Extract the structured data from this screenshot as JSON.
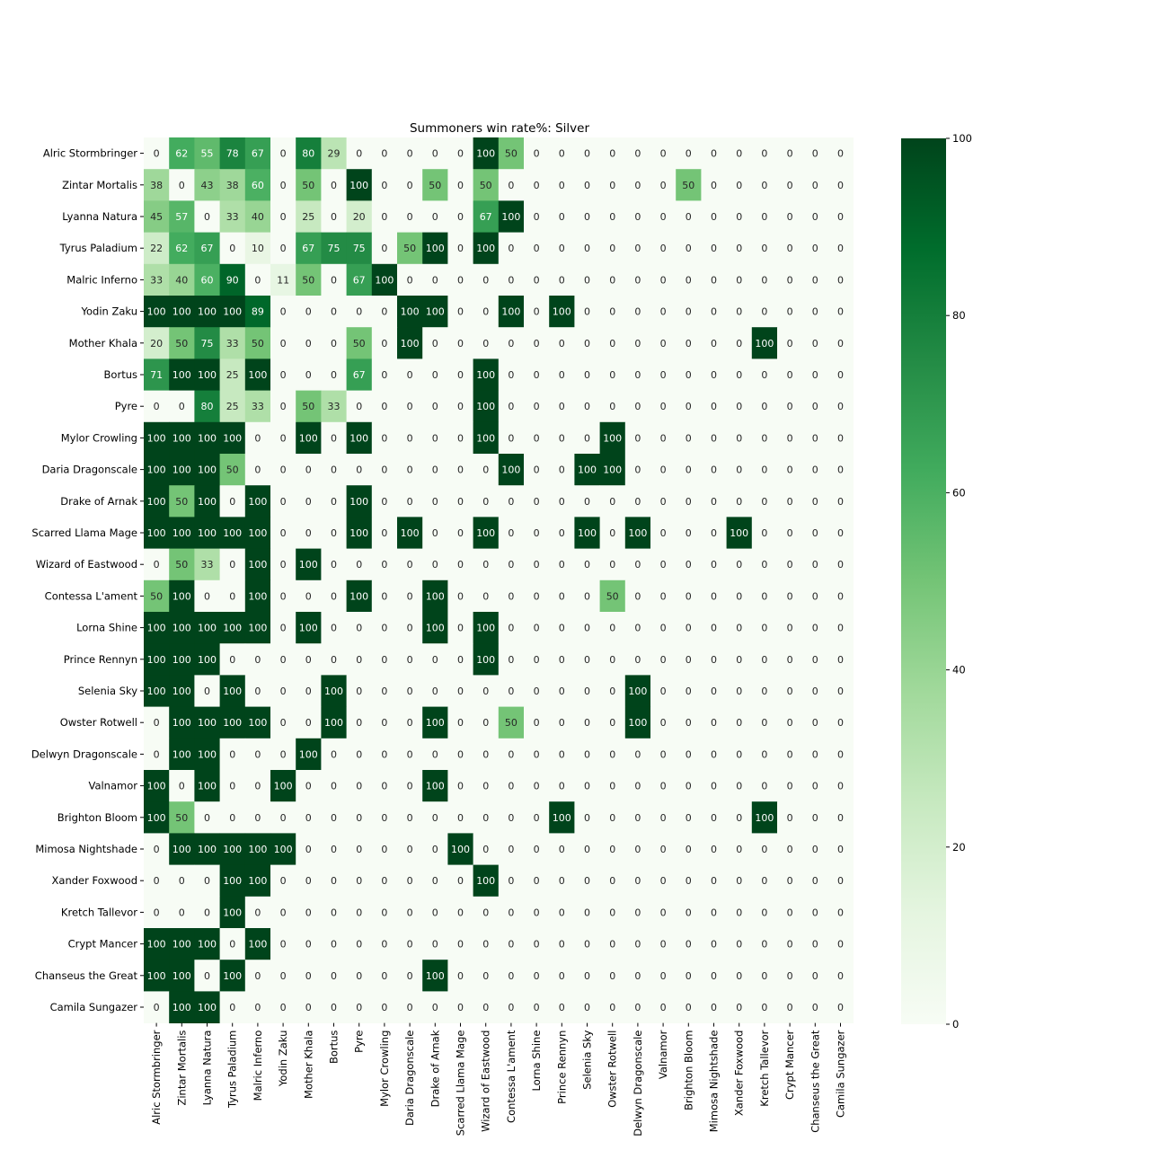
{
  "chart_data": {
    "type": "heatmap",
    "title": "Summoners win rate%: Silver",
    "row_labels": [
      "Alric Stormbringer",
      "Zintar Mortalis",
      "Lyanna Natura",
      "Tyrus Paladium",
      "Malric Inferno",
      "Yodin Zaku",
      "Mother Khala",
      "Bortus",
      "Pyre",
      "Mylor Crowling",
      "Daria Dragonscale",
      "Drake of Arnak",
      "Scarred Llama Mage",
      "Wizard of Eastwood",
      "Contessa L'ament",
      "Lorna Shine",
      "Prince Rennyn",
      "Selenia Sky",
      "Owster Rotwell",
      "Delwyn Dragonscale",
      "Valnamor",
      "Brighton Bloom",
      "Mimosa Nightshade",
      "Xander Foxwood",
      "Kretch Tallevor",
      "Crypt Mancer",
      "Chanseus the Great",
      "Camila Sungazer"
    ],
    "col_labels": [
      "Alric Stormbringer",
      "Zintar Mortalis",
      "Lyanna Natura",
      "Tyrus Paladium",
      "Malric Inferno",
      "Yodin Zaku",
      "Mother Khala",
      "Bortus",
      "Pyre",
      "Mylor Crowling",
      "Daria Dragonscale",
      "Drake of Arnak",
      "Scarred Llama Mage",
      "Wizard of Eastwood",
      "Contessa L'ament",
      "Lorna Shine",
      "Prince Rennyn",
      "Selenia Sky",
      "Owster Rotwell",
      "Delwyn Dragonscale",
      "Valnamor",
      "Brighton Bloom",
      "Mimosa Nightshade",
      "Xander Foxwood",
      "Kretch Tallevor",
      "Crypt Mancer",
      "Chanseus the Great",
      "Camila Sungazer"
    ],
    "values": [
      [
        0,
        62,
        55,
        78,
        67,
        0,
        80,
        29,
        0,
        0,
        0,
        0,
        0,
        100,
        50,
        0,
        0,
        0,
        0,
        0,
        0,
        0,
        0,
        0,
        0,
        0,
        0,
        0
      ],
      [
        38,
        0,
        43,
        38,
        60,
        0,
        50,
        0,
        100,
        0,
        0,
        50,
        0,
        50,
        0,
        0,
        0,
        0,
        0,
        0,
        0,
        50,
        0,
        0,
        0,
        0,
        0,
        0
      ],
      [
        45,
        57,
        0,
        33,
        40,
        0,
        25,
        0,
        20,
        0,
        0,
        0,
        0,
        67,
        100,
        0,
        0,
        0,
        0,
        0,
        0,
        0,
        0,
        0,
        0,
        0,
        0,
        0
      ],
      [
        22,
        62,
        67,
        0,
        10,
        0,
        67,
        75,
        75,
        0,
        50,
        100,
        0,
        100,
        0,
        0,
        0,
        0,
        0,
        0,
        0,
        0,
        0,
        0,
        0,
        0,
        0,
        0
      ],
      [
        33,
        40,
        60,
        90,
        0,
        11,
        50,
        0,
        67,
        100,
        0,
        0,
        0,
        0,
        0,
        0,
        0,
        0,
        0,
        0,
        0,
        0,
        0,
        0,
        0,
        0,
        0,
        0
      ],
      [
        100,
        100,
        100,
        100,
        89,
        0,
        0,
        0,
        0,
        0,
        100,
        100,
        0,
        0,
        100,
        0,
        100,
        0,
        0,
        0,
        0,
        0,
        0,
        0,
        0,
        0,
        0,
        0
      ],
      [
        20,
        50,
        75,
        33,
        50,
        0,
        0,
        0,
        50,
        0,
        100,
        0,
        0,
        0,
        0,
        0,
        0,
        0,
        0,
        0,
        0,
        0,
        0,
        0,
        100,
        0,
        0,
        0
      ],
      [
        71,
        100,
        100,
        25,
        100,
        0,
        0,
        0,
        67,
        0,
        0,
        0,
        0,
        100,
        0,
        0,
        0,
        0,
        0,
        0,
        0,
        0,
        0,
        0,
        0,
        0,
        0,
        0
      ],
      [
        0,
        0,
        80,
        25,
        33,
        0,
        50,
        33,
        0,
        0,
        0,
        0,
        0,
        100,
        0,
        0,
        0,
        0,
        0,
        0,
        0,
        0,
        0,
        0,
        0,
        0,
        0,
        0
      ],
      [
        100,
        100,
        100,
        100,
        0,
        0,
        100,
        0,
        100,
        0,
        0,
        0,
        0,
        100,
        0,
        0,
        0,
        0,
        100,
        0,
        0,
        0,
        0,
        0,
        0,
        0,
        0,
        0
      ],
      [
        100,
        100,
        100,
        50,
        0,
        0,
        0,
        0,
        0,
        0,
        0,
        0,
        0,
        0,
        100,
        0,
        0,
        100,
        100,
        0,
        0,
        0,
        0,
        0,
        0,
        0,
        0,
        0
      ],
      [
        100,
        50,
        100,
        0,
        100,
        0,
        0,
        0,
        100,
        0,
        0,
        0,
        0,
        0,
        0,
        0,
        0,
        0,
        0,
        0,
        0,
        0,
        0,
        0,
        0,
        0,
        0,
        0
      ],
      [
        100,
        100,
        100,
        100,
        100,
        0,
        0,
        0,
        100,
        0,
        100,
        0,
        0,
        100,
        0,
        0,
        0,
        100,
        0,
        100,
        0,
        0,
        0,
        100,
        0,
        0,
        0,
        0
      ],
      [
        0,
        50,
        33,
        0,
        100,
        0,
        100,
        0,
        0,
        0,
        0,
        0,
        0,
        0,
        0,
        0,
        0,
        0,
        0,
        0,
        0,
        0,
        0,
        0,
        0,
        0,
        0,
        0
      ],
      [
        50,
        100,
        0,
        0,
        100,
        0,
        0,
        0,
        100,
        0,
        0,
        100,
        0,
        0,
        0,
        0,
        0,
        0,
        50,
        0,
        0,
        0,
        0,
        0,
        0,
        0,
        0,
        0
      ],
      [
        100,
        100,
        100,
        100,
        100,
        0,
        100,
        0,
        0,
        0,
        0,
        100,
        0,
        100,
        0,
        0,
        0,
        0,
        0,
        0,
        0,
        0,
        0,
        0,
        0,
        0,
        0,
        0
      ],
      [
        100,
        100,
        100,
        0,
        0,
        0,
        0,
        0,
        0,
        0,
        0,
        0,
        0,
        100,
        0,
        0,
        0,
        0,
        0,
        0,
        0,
        0,
        0,
        0,
        0,
        0,
        0,
        0
      ],
      [
        100,
        100,
        0,
        100,
        0,
        0,
        0,
        100,
        0,
        0,
        0,
        0,
        0,
        0,
        0,
        0,
        0,
        0,
        0,
        100,
        0,
        0,
        0,
        0,
        0,
        0,
        0,
        0
      ],
      [
        0,
        100,
        100,
        100,
        100,
        0,
        0,
        100,
        0,
        0,
        0,
        100,
        0,
        0,
        50,
        0,
        0,
        0,
        0,
        100,
        0,
        0,
        0,
        0,
        0,
        0,
        0,
        0
      ],
      [
        0,
        100,
        100,
        0,
        0,
        0,
        100,
        0,
        0,
        0,
        0,
        0,
        0,
        0,
        0,
        0,
        0,
        0,
        0,
        0,
        0,
        0,
        0,
        0,
        0,
        0,
        0,
        0
      ],
      [
        100,
        0,
        100,
        0,
        0,
        100,
        0,
        0,
        0,
        0,
        0,
        100,
        0,
        0,
        0,
        0,
        0,
        0,
        0,
        0,
        0,
        0,
        0,
        0,
        0,
        0,
        0,
        0
      ],
      [
        100,
        50,
        0,
        0,
        0,
        0,
        0,
        0,
        0,
        0,
        0,
        0,
        0,
        0,
        0,
        0,
        100,
        0,
        0,
        0,
        0,
        0,
        0,
        0,
        100,
        0,
        0,
        0
      ],
      [
        0,
        100,
        100,
        100,
        100,
        100,
        0,
        0,
        0,
        0,
        0,
        0,
        100,
        0,
        0,
        0,
        0,
        0,
        0,
        0,
        0,
        0,
        0,
        0,
        0,
        0,
        0,
        0
      ],
      [
        0,
        0,
        0,
        100,
        100,
        0,
        0,
        0,
        0,
        0,
        0,
        0,
        0,
        100,
        0,
        0,
        0,
        0,
        0,
        0,
        0,
        0,
        0,
        0,
        0,
        0,
        0,
        0
      ],
      [
        0,
        0,
        0,
        100,
        0,
        0,
        0,
        0,
        0,
        0,
        0,
        0,
        0,
        0,
        0,
        0,
        0,
        0,
        0,
        0,
        0,
        0,
        0,
        0,
        0,
        0,
        0,
        0
      ],
      [
        100,
        100,
        100,
        0,
        100,
        0,
        0,
        0,
        0,
        0,
        0,
        0,
        0,
        0,
        0,
        0,
        0,
        0,
        0,
        0,
        0,
        0,
        0,
        0,
        0,
        0,
        0,
        0
      ],
      [
        100,
        100,
        0,
        100,
        0,
        0,
        0,
        0,
        0,
        0,
        0,
        100,
        0,
        0,
        0,
        0,
        0,
        0,
        0,
        0,
        0,
        0,
        0,
        0,
        0,
        0,
        0,
        0
      ],
      [
        0,
        100,
        100,
        0,
        0,
        0,
        0,
        0,
        0,
        0,
        0,
        0,
        0,
        0,
        0,
        0,
        0,
        0,
        0,
        0,
        0,
        0,
        0,
        0,
        0,
        0,
        0,
        0
      ]
    ],
    "value_range": [
      0,
      100
    ],
    "colorbar_ticks": [
      0,
      20,
      40,
      60,
      80,
      100
    ],
    "colormap": "Greens",
    "colors": {
      "low": "#f7fcf5",
      "high": "#00441b",
      "text_dark": "#262626",
      "text_light": "#ffffff"
    },
    "grid": false,
    "legend": "colorbar-right",
    "xlabel": "",
    "ylabel": ""
  }
}
